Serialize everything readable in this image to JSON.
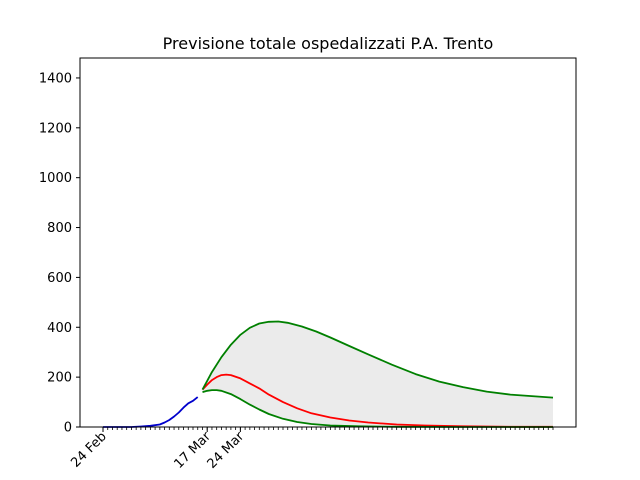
{
  "chart_data": {
    "type": "line",
    "title": "Previsione totale ospedalizzati P.A. Trento",
    "xlabel": "",
    "ylabel": "",
    "x_start": "2020-02-24",
    "x_end": "2020-05-29",
    "ylim": [
      0,
      1480
    ],
    "yticks": [
      0,
      200,
      400,
      600,
      800,
      1000,
      1200,
      1400
    ],
    "xticks": [
      {
        "date": "2020-02-24",
        "label": "24 Feb"
      },
      {
        "date": "2020-03-17",
        "label": "17 Mar"
      },
      {
        "date": "2020-03-24",
        "label": "24 Mar"
      }
    ],
    "grid": false,
    "legend": false,
    "band": {
      "color": "#ebebeb",
      "lower_series": "Lower",
      "upper_series": "Upper"
    },
    "series": [
      {
        "color": "#0000cc",
        "points": [
          [
            "2020-02-24",
            0
          ],
          [
            "2020-02-26",
            0
          ],
          [
            "2020-02-28",
            0
          ],
          [
            "2020-03-01",
            0
          ],
          [
            "2020-03-03",
            2
          ],
          [
            "2020-03-05",
            5
          ],
          [
            "2020-03-07",
            10
          ],
          [
            "2020-03-08",
            18
          ],
          [
            "2020-03-09",
            28
          ],
          [
            "2020-03-10",
            42
          ],
          [
            "2020-03-11",
            58
          ],
          [
            "2020-03-12",
            78
          ],
          [
            "2020-03-13",
            95
          ],
          [
            "2020-03-14",
            105
          ],
          [
            "2020-03-15",
            120
          ]
        ]
      },
      {
        "color": "#ff0000",
        "points": [
          [
            "2020-03-16",
            150
          ],
          [
            "2020-03-17",
            170
          ],
          [
            "2020-03-18",
            188
          ],
          [
            "2020-03-19",
            200
          ],
          [
            "2020-03-20",
            208
          ],
          [
            "2020-03-21",
            210
          ],
          [
            "2020-03-22",
            208
          ],
          [
            "2020-03-24",
            195
          ],
          [
            "2020-03-26",
            175
          ],
          [
            "2020-03-28",
            155
          ],
          [
            "2020-03-30",
            130
          ],
          [
            "2020-04-02",
            100
          ],
          [
            "2020-04-05",
            75
          ],
          [
            "2020-04-08",
            55
          ],
          [
            "2020-04-12",
            38
          ],
          [
            "2020-04-16",
            26
          ],
          [
            "2020-04-20",
            18
          ],
          [
            "2020-04-26",
            10
          ],
          [
            "2020-05-02",
            6
          ],
          [
            "2020-05-10",
            3
          ],
          [
            "2020-05-20",
            1
          ],
          [
            "2020-05-29",
            1
          ]
        ]
      },
      {
        "name": "Upper",
        "color": "#008000",
        "points": [
          [
            "2020-03-16",
            150
          ],
          [
            "2020-03-18",
            220
          ],
          [
            "2020-03-20",
            280
          ],
          [
            "2020-03-22",
            330
          ],
          [
            "2020-03-24",
            370
          ],
          [
            "2020-03-26",
            398
          ],
          [
            "2020-03-28",
            415
          ],
          [
            "2020-03-30",
            422
          ],
          [
            "2020-04-01",
            423
          ],
          [
            "2020-04-03",
            418
          ],
          [
            "2020-04-06",
            403
          ],
          [
            "2020-04-09",
            383
          ],
          [
            "2020-04-12",
            359
          ],
          [
            "2020-04-16",
            325
          ],
          [
            "2020-04-20",
            291
          ],
          [
            "2020-04-25",
            250
          ],
          [
            "2020-04-30",
            212
          ],
          [
            "2020-05-05",
            182
          ],
          [
            "2020-05-10",
            160
          ],
          [
            "2020-05-15",
            142
          ],
          [
            "2020-05-20",
            130
          ],
          [
            "2020-05-29",
            118
          ]
        ]
      },
      {
        "name": "Lower",
        "color": "#008000",
        "points": [
          [
            "2020-03-16",
            140
          ],
          [
            "2020-03-17",
            145
          ],
          [
            "2020-03-18",
            148
          ],
          [
            "2020-03-19",
            148
          ],
          [
            "2020-03-20",
            145
          ],
          [
            "2020-03-22",
            132
          ],
          [
            "2020-03-24",
            112
          ],
          [
            "2020-03-26",
            90
          ],
          [
            "2020-03-28",
            70
          ],
          [
            "2020-03-30",
            52
          ],
          [
            "2020-04-02",
            33
          ],
          [
            "2020-04-05",
            20
          ],
          [
            "2020-04-08",
            12
          ],
          [
            "2020-04-12",
            6
          ],
          [
            "2020-04-18",
            3
          ],
          [
            "2020-04-26",
            1
          ],
          [
            "2020-05-10",
            0
          ],
          [
            "2020-05-29",
            0
          ]
        ]
      }
    ]
  }
}
